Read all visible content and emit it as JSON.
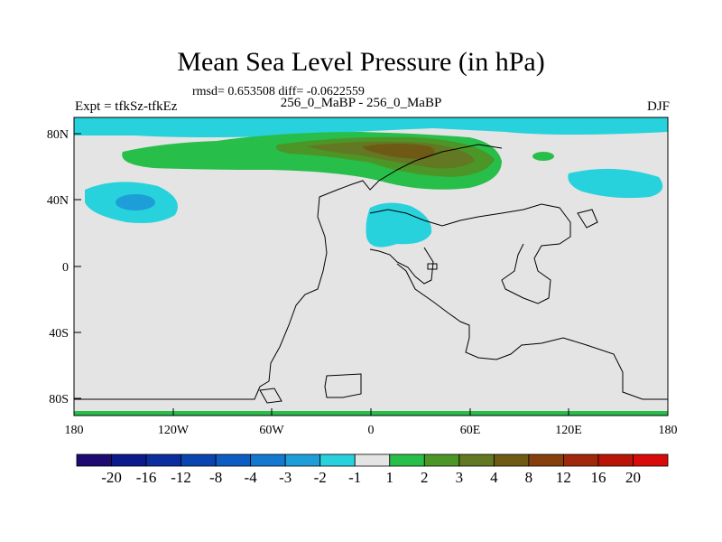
{
  "title": "Mean Sea Level Pressure (in hPa)",
  "stats": "rmsd= 0.653508 diff= -0.0622559",
  "left_label": "Expt = tfkSz-tfkEz",
  "center_label": "256_0_MaBP - 256_0_MaBP",
  "right_label": "DJF",
  "x_ticks": [
    "180",
    "120W",
    "60W",
    "0",
    "60E",
    "120E",
    "180"
  ],
  "y_ticks": [
    "80N",
    "40N",
    "0",
    "40S",
    "80S"
  ],
  "colorbar": {
    "labels": [
      "-20",
      "-16",
      "-12",
      "-8",
      "-4",
      "-3",
      "-2",
      "-1",
      "1",
      "2",
      "3",
      "4",
      "8",
      "12",
      "16",
      "20"
    ],
    "colors": [
      "#1e0a70",
      "#0c1a8c",
      "#0a2e9e",
      "#0a44b0",
      "#0c5cc2",
      "#1478d0",
      "#1e9ed8",
      "#28d2dc",
      "#e4e4e4",
      "#28be4a",
      "#4c9628",
      "#627822",
      "#6e5a14",
      "#86400e",
      "#a0280c",
      "#ba1408",
      "#d80a0a"
    ]
  },
  "map_colors": {
    "neutral": "#e4e4e4",
    "cyan": "#28d2dc",
    "blue": "#1e9ed8",
    "green": "#28be4a",
    "dark_green": "#4c9628",
    "olive": "#627822",
    "brown": "#6e5a14",
    "coast": "#000000"
  }
}
